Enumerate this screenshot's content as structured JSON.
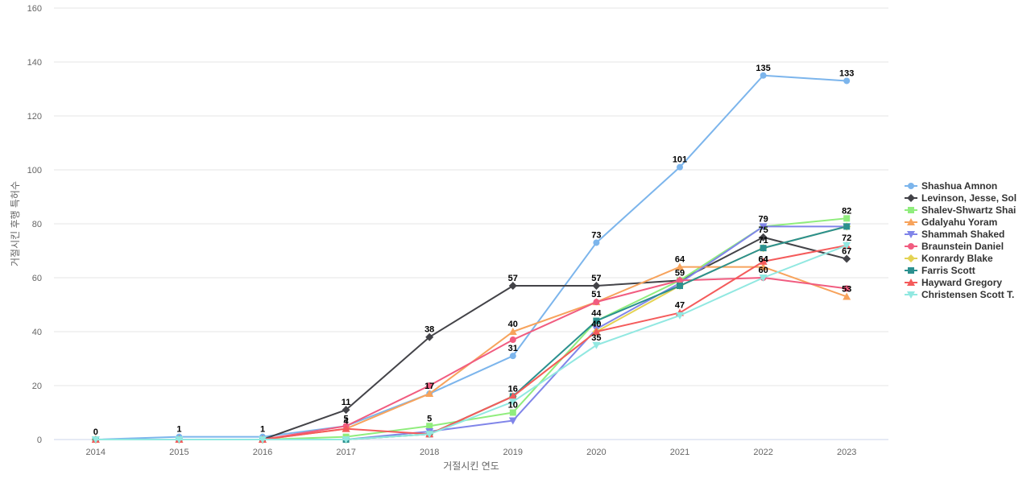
{
  "chart_data": {
    "type": "line",
    "title": "",
    "xlabel": "거절시킨 연도",
    "ylabel": "거절시킨 후행 특허수",
    "ylim": [
      0,
      160
    ],
    "yticks": [
      0,
      20,
      40,
      60,
      80,
      100,
      120,
      140,
      160
    ],
    "grid": true,
    "legend_position": "right",
    "categories": [
      "2014",
      "2015",
      "2016",
      "2017",
      "2018",
      "2019",
      "2020",
      "2021",
      "2022",
      "2023"
    ],
    "series": [
      {
        "name": "Shashua Amnon",
        "color": "#7cb5ec",
        "marker": "circle",
        "values": [
          0,
          1,
          1,
          5,
          17,
          31,
          73,
          101,
          135,
          133
        ],
        "labels": [
          true,
          true,
          true,
          false,
          false,
          true,
          true,
          true,
          true,
          true
        ]
      },
      {
        "name": "Levinson, Jesse, Sol",
        "color": "#434348",
        "marker": "diamond",
        "values": [
          0,
          0,
          0,
          11,
          38,
          57,
          57,
          59,
          75,
          67
        ],
        "labels": [
          false,
          false,
          false,
          true,
          true,
          true,
          true,
          false,
          true,
          true
        ]
      },
      {
        "name": "Shalev-Shwartz Shai",
        "color": "#90ed7d",
        "marker": "square",
        "values": [
          0,
          0,
          0,
          1,
          5,
          10,
          44,
          59,
          79,
          82
        ],
        "labels": [
          false,
          false,
          false,
          false,
          true,
          true,
          true,
          true,
          true,
          true
        ]
      },
      {
        "name": "Gdalyahu Yoram",
        "color": "#f7a35c",
        "marker": "triangle",
        "values": [
          0,
          0,
          0,
          4,
          17,
          40,
          51,
          64,
          64,
          53
        ],
        "labels": [
          false,
          false,
          false,
          false,
          true,
          true,
          false,
          true,
          true,
          false
        ]
      },
      {
        "name": "Shammah Shaked",
        "color": "#8085e9",
        "marker": "triangle-down",
        "values": [
          0,
          0,
          0,
          0,
          3,
          7,
          41,
          58,
          79,
          79
        ],
        "labels": [
          false,
          false,
          false,
          false,
          false,
          false,
          false,
          false,
          false,
          false
        ]
      },
      {
        "name": "Braunstein Daniel",
        "color": "#f15c80",
        "marker": "circle",
        "values": [
          0,
          0,
          0,
          5,
          20,
          37,
          51,
          59,
          60,
          56
        ],
        "labels": [
          false,
          false,
          false,
          true,
          false,
          false,
          true,
          false,
          true,
          false
        ]
      },
      {
        "name": "Konrardy Blake",
        "color": "#e4d354",
        "marker": "diamond",
        "values": [
          0,
          0,
          0,
          0,
          2,
          16,
          40,
          57,
          71,
          79
        ],
        "labels": [
          false,
          false,
          false,
          false,
          false,
          false,
          false,
          false,
          false,
          false
        ]
      },
      {
        "name": "Farris Scott",
        "color": "#2b908f",
        "marker": "square",
        "values": [
          0,
          0,
          0,
          0,
          2,
          16,
          44,
          57,
          71,
          79
        ],
        "labels": [
          false,
          false,
          false,
          false,
          false,
          true,
          false,
          false,
          true,
          false
        ]
      },
      {
        "name": "Hayward Gregory",
        "color": "#f45b5b",
        "marker": "triangle",
        "values": [
          0,
          0,
          0,
          4,
          2,
          16,
          40,
          47,
          66,
          72
        ],
        "labels": [
          false,
          false,
          false,
          true,
          false,
          false,
          true,
          true,
          false,
          true
        ]
      },
      {
        "name": "Christensen Scott T.",
        "color": "#91e8e1",
        "marker": "triangle-down",
        "values": [
          0,
          0,
          0,
          0,
          2,
          14,
          35,
          46,
          60,
          72
        ],
        "labels": [
          false,
          false,
          false,
          false,
          false,
          false,
          true,
          false,
          false,
          false
        ]
      }
    ],
    "extra_labels": [
      {
        "category": "2023",
        "value": 53,
        "text": "53"
      },
      {
        "category": "2022",
        "value": 64,
        "text": "64"
      }
    ]
  }
}
